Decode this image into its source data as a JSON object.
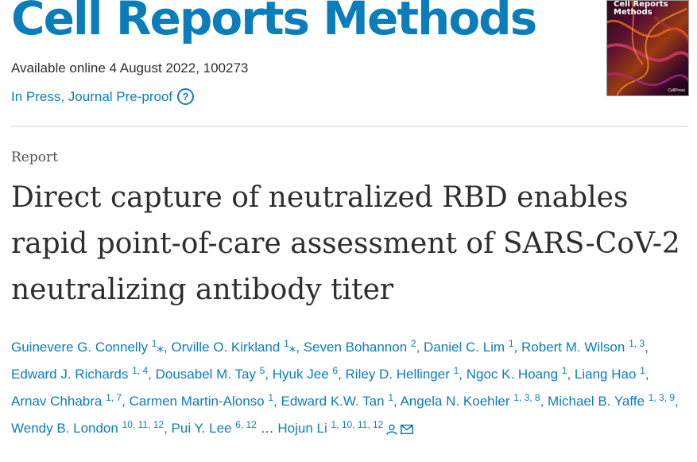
{
  "journal": {
    "title": "Cell Reports Methods",
    "availability": "Available online 4 August 2022, 100273",
    "status": "In Press, Journal Pre-proof",
    "help_icon": "question-circle-icon",
    "cover": {
      "title_line1": "Cell Reports",
      "title_line2": "Methods",
      "publisher": "CellPress"
    }
  },
  "article": {
    "type": "Report",
    "title": "Direct capture of neutralized RBD enables rapid point-of-care assessment of SARS-CoV-2 neutralizing antibody titer"
  },
  "authors": [
    {
      "name": "Guinevere G. Connelly",
      "sup": "1",
      "corresponding": true
    },
    {
      "name": "Orville O. Kirkland",
      "sup": "1",
      "corresponding": true
    },
    {
      "name": "Seven Bohannon",
      "sup": "2"
    },
    {
      "name": "Daniel C. Lim",
      "sup": "1"
    },
    {
      "name": "Robert M. Wilson",
      "sup": "1, 3"
    },
    {
      "name": "Edward J. Richards",
      "sup": "1, 4"
    },
    {
      "name": "Dousabel M. Tay",
      "sup": "5"
    },
    {
      "name": "Hyuk Jee",
      "sup": "6"
    },
    {
      "name": "Riley D. Hellinger",
      "sup": "1"
    },
    {
      "name": "Ngoc K. Hoang",
      "sup": "1"
    },
    {
      "name": "Liang Hao",
      "sup": "1"
    },
    {
      "name": "Arnav Chhabra",
      "sup": "1, 7"
    },
    {
      "name": "Carmen Martin-Alonso",
      "sup": "1"
    },
    {
      "name": "Edward K.W. Tan",
      "sup": "1"
    },
    {
      "name": "Angela N. Koehler",
      "sup": "1, 3, 8"
    },
    {
      "name": "Michael B. Yaffe",
      "sup": "1, 3, 9"
    },
    {
      "name": "Wendy B. London",
      "sup": "10, 11, 12"
    },
    {
      "name": "Pui Y. Lee",
      "sup": "6, 12"
    },
    {
      "name": "Hojun Li",
      "sup": "1, 10, 11, 12"
    }
  ],
  "authors_ellipsis": "…",
  "corresponding_mark": "⁎",
  "colors": {
    "accent": "#0c7dbb",
    "text": "#2e2e2e"
  }
}
